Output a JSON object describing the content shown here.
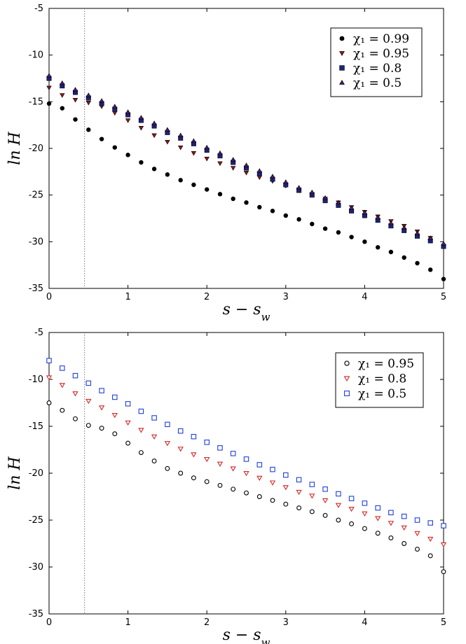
{
  "chart_data": [
    {
      "type": "scatter",
      "xlabel": "s − s_w",
      "ylabel": "ln H",
      "xlim": [
        0,
        5
      ],
      "ylim": [
        -35,
        -5
      ],
      "xticks": [
        "0",
        "1",
        "2",
        "3",
        "4",
        "5"
      ],
      "yticks": [
        "-5",
        "-10",
        "-15",
        "-20",
        "-25",
        "-30",
        "-35"
      ],
      "vline_x": 0.45,
      "legend_position": "top-right",
      "x": [
        0,
        0.167,
        0.333,
        0.5,
        0.667,
        0.833,
        1.0,
        1.167,
        1.333,
        1.5,
        1.667,
        1.833,
        2.0,
        2.167,
        2.333,
        2.5,
        2.667,
        2.833,
        3.0,
        3.167,
        3.333,
        3.5,
        3.667,
        3.833,
        4.0,
        4.167,
        4.333,
        4.5,
        4.667,
        4.833,
        5.0
      ],
      "series": [
        {
          "name": "χ₁ = 0.99",
          "marker": "circle-filled",
          "color": "#000000",
          "values": [
            -15.2,
            -15.7,
            -16.9,
            -18.0,
            -19.0,
            -19.9,
            -20.7,
            -21.5,
            -22.2,
            -22.8,
            -23.4,
            -23.9,
            -24.4,
            -24.9,
            -25.4,
            -25.8,
            -26.3,
            -26.7,
            -27.2,
            -27.6,
            -28.1,
            -28.6,
            -29.0,
            -29.5,
            -30.0,
            -30.6,
            -31.1,
            -31.7,
            -32.3,
            -33.0,
            -34.0
          ]
        },
        {
          "name": "χ₁ = 0.95",
          "marker": "triangle-down-filled",
          "color": "#8b1a1a",
          "values": [
            -13.5,
            -14.3,
            -14.8,
            -15.1,
            -15.5,
            -16.2,
            -17.0,
            -17.8,
            -18.6,
            -19.3,
            -19.9,
            -20.5,
            -21.1,
            -21.6,
            -22.1,
            -22.6,
            -23.1,
            -23.5,
            -24.0,
            -24.4,
            -24.9,
            -25.4,
            -25.8,
            -26.3,
            -26.8,
            -27.3,
            -27.8,
            -28.3,
            -28.9,
            -29.6,
            -30.5
          ]
        },
        {
          "name": "χ₁ = 0.8",
          "marker": "square-filled",
          "color": "#1a237e",
          "values": [
            -12.5,
            -13.3,
            -14.0,
            -14.6,
            -15.2,
            -15.8,
            -16.4,
            -17.0,
            -17.6,
            -18.3,
            -18.9,
            -19.5,
            -20.2,
            -20.8,
            -21.5,
            -22.1,
            -22.7,
            -23.3,
            -23.9,
            -24.5,
            -25.0,
            -25.6,
            -26.1,
            -26.7,
            -27.2,
            -27.7,
            -28.3,
            -28.8,
            -29.4,
            -29.9,
            -30.5
          ]
        },
        {
          "name": "χ₁ = 0.5",
          "marker": "triangle-up-filled",
          "color": "#4a1a6b",
          "values": [
            -12.2,
            -13.0,
            -13.7,
            -14.3,
            -14.9,
            -15.5,
            -16.1,
            -16.7,
            -17.3,
            -18.0,
            -18.6,
            -19.2,
            -19.9,
            -20.5,
            -21.2,
            -21.8,
            -22.4,
            -23.0,
            -23.6,
            -24.2,
            -24.7,
            -25.3,
            -25.8,
            -26.4,
            -26.9,
            -27.4,
            -28.0,
            -28.5,
            -29.1,
            -29.6,
            -30.2
          ]
        }
      ]
    },
    {
      "type": "scatter",
      "xlabel": "s − s_w",
      "ylabel": "ln H",
      "xlim": [
        0,
        5
      ],
      "ylim": [
        -35,
        -5
      ],
      "xticks": [
        "0",
        "1",
        "2",
        "3",
        "4",
        "5"
      ],
      "yticks": [
        "-5",
        "-10",
        "-15",
        "-20",
        "-25",
        "-30",
        "-35"
      ],
      "vline_x": 0.45,
      "legend_position": "top-right",
      "x": [
        0,
        0.167,
        0.333,
        0.5,
        0.667,
        0.833,
        1.0,
        1.167,
        1.333,
        1.5,
        1.667,
        1.833,
        2.0,
        2.167,
        2.333,
        2.5,
        2.667,
        2.833,
        3.0,
        3.167,
        3.333,
        3.5,
        3.667,
        3.833,
        4.0,
        4.167,
        4.333,
        4.5,
        4.667,
        4.833,
        5.0
      ],
      "series": [
        {
          "name": "χ₁ = 0.95",
          "marker": "circle-open",
          "color": "#000000",
          "values": [
            -12.5,
            -13.3,
            -14.2,
            -14.9,
            -15.2,
            -15.8,
            -16.8,
            -17.8,
            -18.7,
            -19.5,
            -20.0,
            -20.5,
            -20.9,
            -21.3,
            -21.7,
            -22.1,
            -22.5,
            -22.9,
            -23.3,
            -23.7,
            -24.1,
            -24.5,
            -25.0,
            -25.4,
            -25.9,
            -26.4,
            -26.9,
            -27.5,
            -28.1,
            -28.8,
            -30.5
          ]
        },
        {
          "name": "χ₁ = 0.8",
          "marker": "triangle-down-open",
          "color": "#d62728",
          "values": [
            -9.8,
            -10.6,
            -11.5,
            -12.3,
            -13.0,
            -13.8,
            -14.6,
            -15.4,
            -16.1,
            -16.8,
            -17.4,
            -18.0,
            -18.5,
            -19.0,
            -19.5,
            -20.0,
            -20.5,
            -21.0,
            -21.5,
            -22.0,
            -22.4,
            -22.9,
            -23.4,
            -23.8,
            -24.3,
            -24.8,
            -25.3,
            -25.8,
            -26.4,
            -27.0,
            -27.6
          ]
        },
        {
          "name": "χ₁ = 0.5",
          "marker": "square-open",
          "color": "#1f3fd6",
          "values": [
            -8.0,
            -8.8,
            -9.6,
            -10.4,
            -11.2,
            -11.9,
            -12.6,
            -13.4,
            -14.1,
            -14.8,
            -15.5,
            -16.1,
            -16.7,
            -17.3,
            -17.9,
            -18.5,
            -19.1,
            -19.6,
            -20.2,
            -20.7,
            -21.2,
            -21.7,
            -22.2,
            -22.7,
            -23.2,
            -23.7,
            -24.2,
            -24.6,
            -25.0,
            -25.3,
            -25.6
          ]
        }
      ]
    }
  ]
}
